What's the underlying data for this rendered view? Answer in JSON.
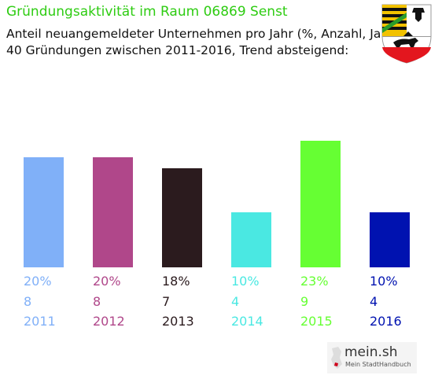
{
  "header": {
    "title": "Gründungsaktivität im Raum 06869 Senst",
    "subtitle_line1": "Anteil neuangemeldeter Unternehmen pro Jahr (%, Anzahl, Jahr)",
    "subtitle_line2": "40 Gründungen zwischen 2011-2016, Trend absteigend:"
  },
  "branding": {
    "logo_text": "mein.sh",
    "logo_subtitle": "Mein StadtHandbuch"
  },
  "crest": {
    "icon": "coat-of-arms-icon"
  },
  "chart_data": {
    "type": "bar",
    "categories": [
      "2011",
      "2012",
      "2013",
      "2014",
      "2015",
      "2016"
    ],
    "percent_labels": [
      "20%",
      "20%",
      "18%",
      "10%",
      "23%",
      "10%"
    ],
    "counts": [
      8,
      8,
      7,
      4,
      9,
      4
    ],
    "values": [
      20,
      20,
      18,
      10,
      23,
      10
    ],
    "colors": [
      "#80b0f8",
      "#b0478a",
      "#2b1b1e",
      "#4ae8e2",
      "#66ff33",
      "#0012b0"
    ]
  }
}
